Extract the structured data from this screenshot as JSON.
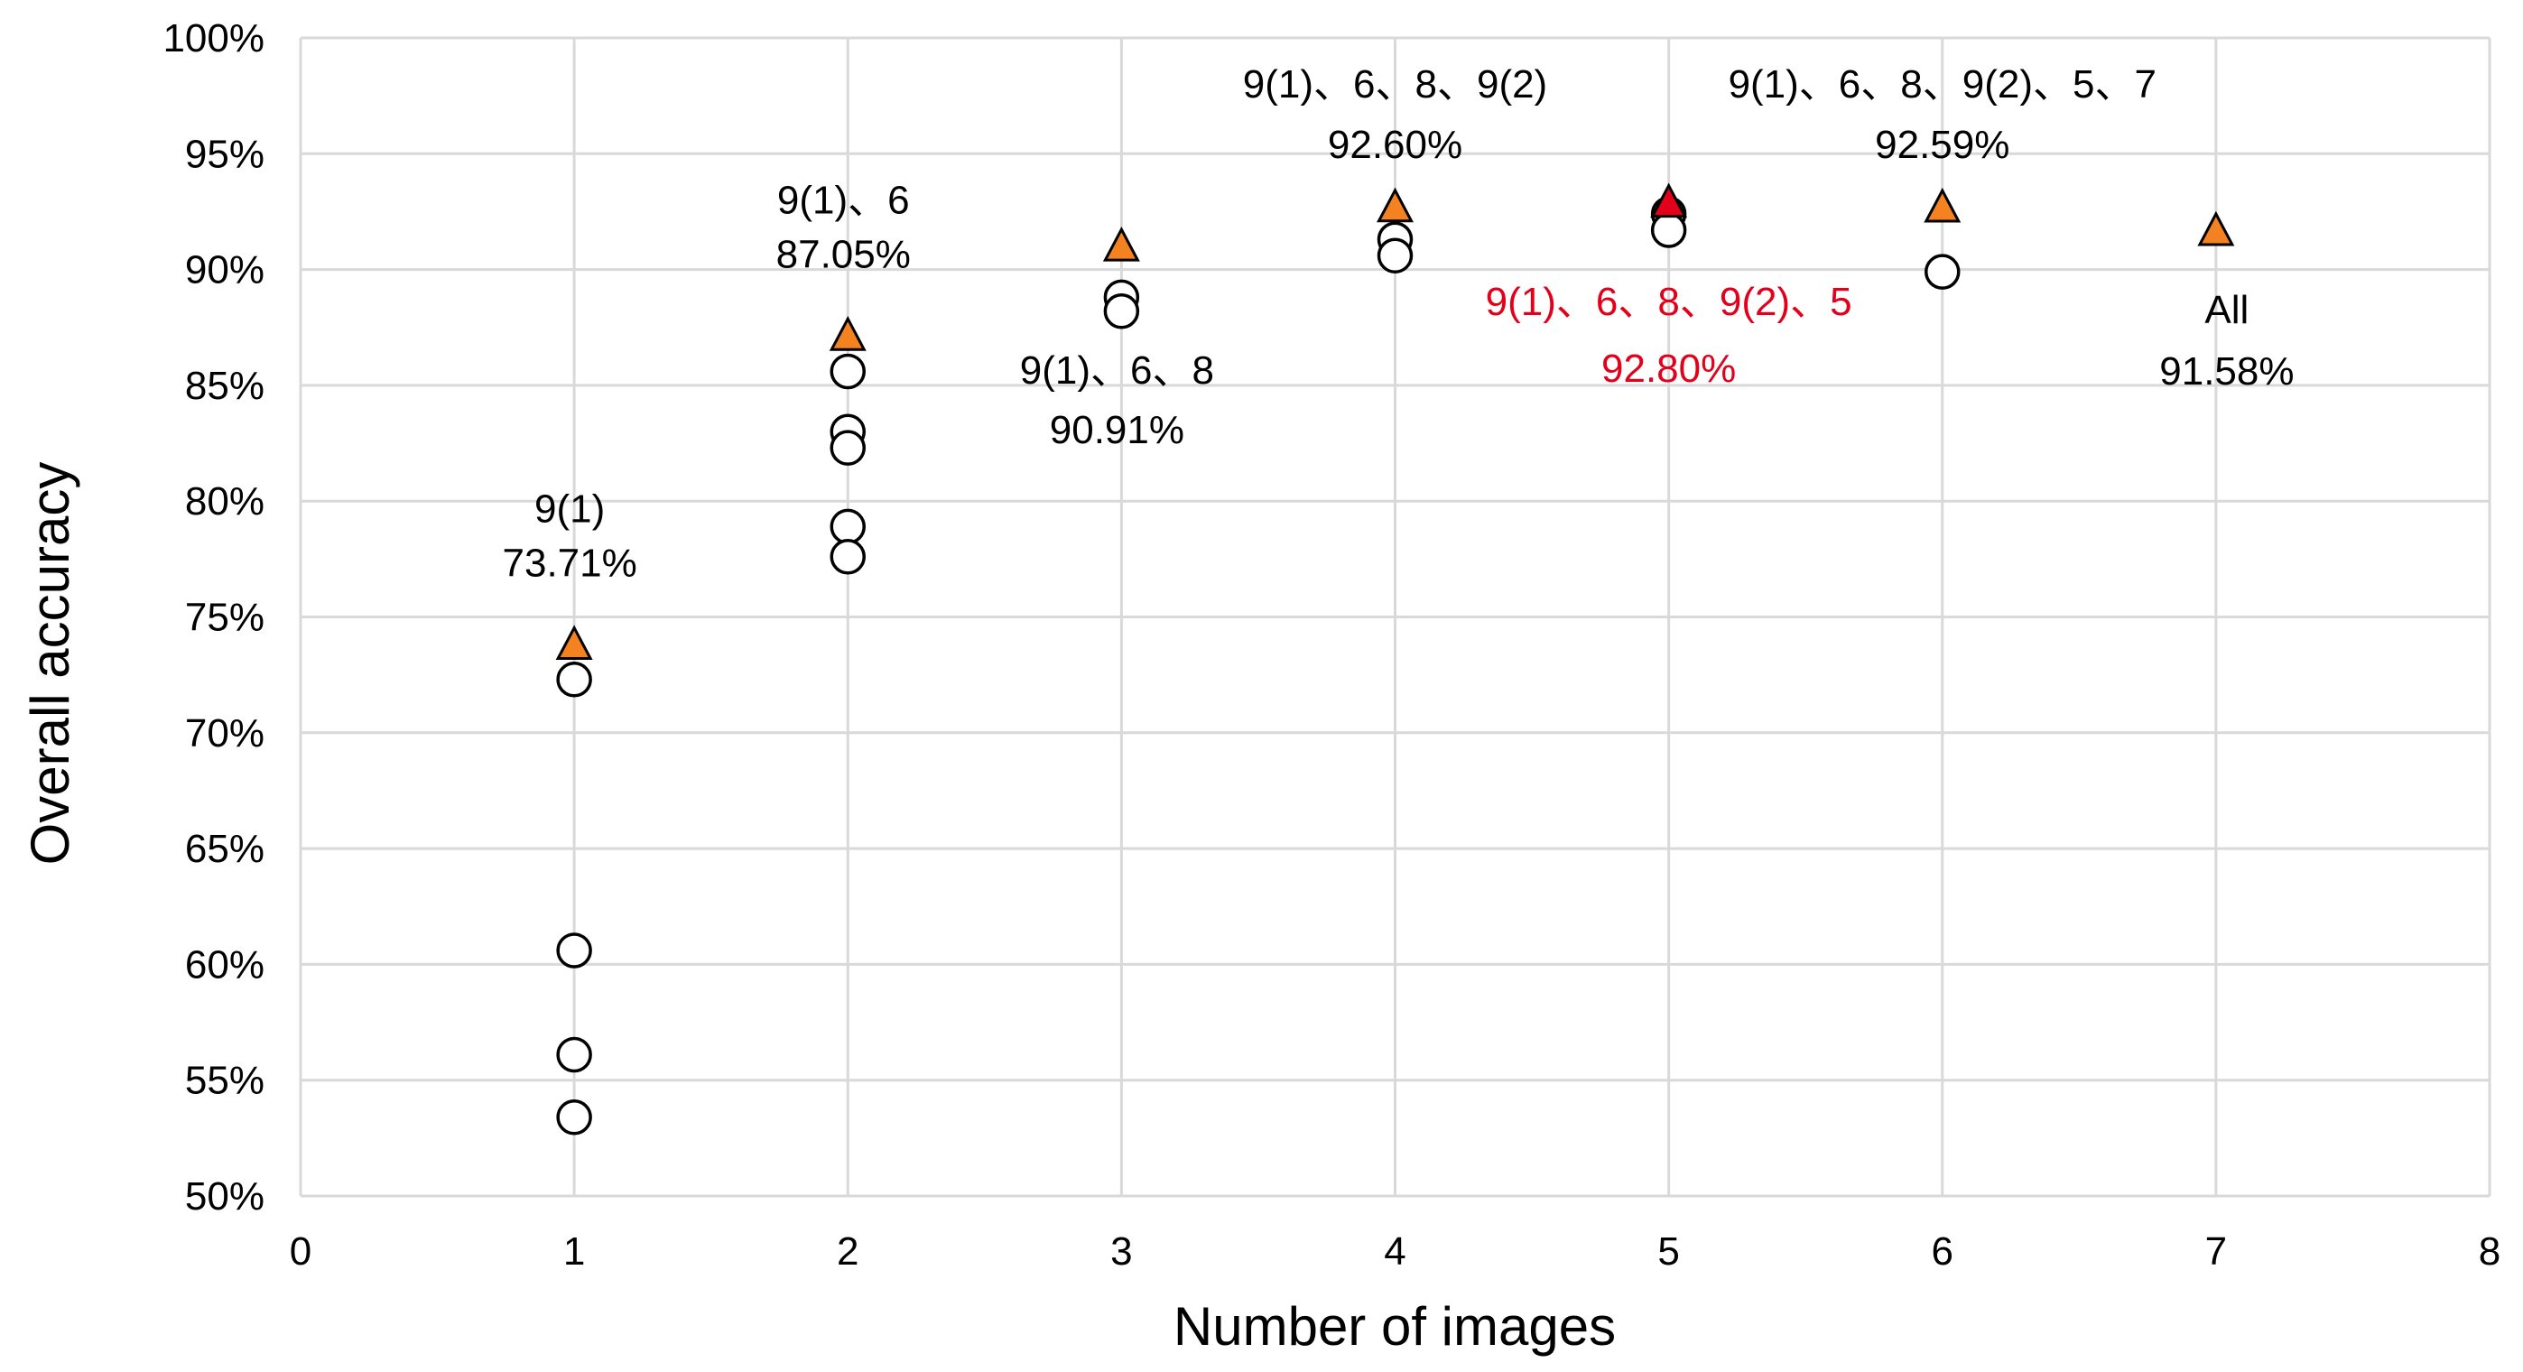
{
  "chart_data": {
    "type": "scatter",
    "xlabel": "Number of images",
    "ylabel": "Overall accuracy",
    "xlim": [
      0,
      8
    ],
    "ylim": [
      50,
      100
    ],
    "x_ticks": [
      "0",
      "1",
      "2",
      "3",
      "4",
      "5",
      "6",
      "7",
      "8"
    ],
    "y_ticks": [
      "50%",
      "55%",
      "60%",
      "65%",
      "70%",
      "75%",
      "80%",
      "85%",
      "90%",
      "95%",
      "100%"
    ],
    "grid": true,
    "legend": "none",
    "colors": {
      "best": "#f58220",
      "overall_best": "#e3001b",
      "circle_fill": "#ffffff",
      "outline": "#000000",
      "highlight_text": "#e3001b",
      "grid": "#d9d9d9"
    },
    "series": [
      {
        "marker": "circle",
        "points": [
          {
            "x": 1,
            "y": 72.3
          },
          {
            "x": 1,
            "y": 60.6
          },
          {
            "x": 1,
            "y": 56.1
          },
          {
            "x": 1,
            "y": 53.4
          },
          {
            "x": 2,
            "y": 85.6
          },
          {
            "x": 2,
            "y": 83.0
          },
          {
            "x": 2,
            "y": 82.3
          },
          {
            "x": 2,
            "y": 78.9
          },
          {
            "x": 2,
            "y": 77.6
          },
          {
            "x": 3,
            "y": 88.8
          },
          {
            "x": 3,
            "y": 88.2
          },
          {
            "x": 4,
            "y": 91.3
          },
          {
            "x": 4,
            "y": 90.6
          },
          {
            "x": 5,
            "y": 92.4
          },
          {
            "x": 5,
            "y": 91.7
          },
          {
            "x": 6,
            "y": 89.9
          }
        ]
      },
      {
        "marker": "triangle",
        "points": [
          {
            "x": 1,
            "y": 73.71,
            "combo": "9(1)",
            "value_label": "73.71%"
          },
          {
            "x": 2,
            "y": 87.05,
            "combo": "9(1)、6",
            "value_label": "87.05%"
          },
          {
            "x": 3,
            "y": 90.91,
            "combo": "9(1)、6、8",
            "value_label": "90.91%"
          },
          {
            "x": 4,
            "y": 92.6,
            "combo": "9(1)、6、8、9(2)",
            "value_label": "92.60%"
          },
          {
            "x": 5,
            "y": 92.8,
            "combo": "9(1)、6、8、9(2)、5",
            "value_label": "92.80%",
            "highlight": true
          },
          {
            "x": 6,
            "y": 92.59,
            "combo": "9(1)、6、8、9(2)、5、7",
            "value_label": "92.59%"
          },
          {
            "x": 7,
            "y": 91.58,
            "combo": "All",
            "value_label": "91.58%"
          }
        ]
      }
    ]
  }
}
